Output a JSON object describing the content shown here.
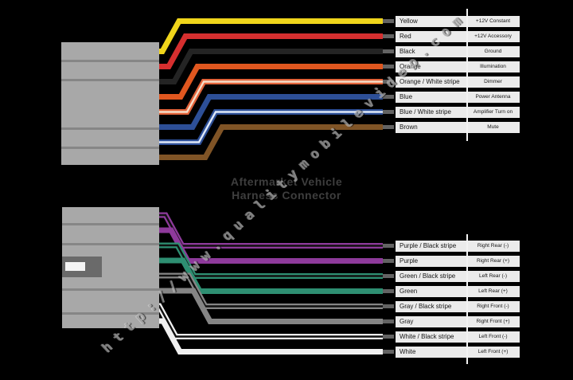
{
  "title": {
    "line1": "Aftermarket Vehicle",
    "line2": "Harness Connector"
  },
  "watermark": "http://www.qualitymobilevideo.com",
  "colors": {
    "background": "#000000",
    "connector_body": "#a8a8a8",
    "connector_slot": "#868686",
    "connector_latch_outer": "#6a6a6a",
    "connector_latch_inner": "#f5f5f5",
    "label_box": "#ebebeb",
    "label_text": "#141414",
    "divider_line": "#f3f3f3",
    "wire_tip": "#636363",
    "title_text": "#3e3e3e",
    "watermark_text": "#a3a3a3"
  },
  "top_harness": {
    "wires": [
      {
        "color_name": "Yellow",
        "function": "+12V Constant",
        "hex": "#f0d51b",
        "stripe": null
      },
      {
        "color_name": "Red",
        "function": "+12V Accessory",
        "hex": "#d62f2f",
        "stripe": null
      },
      {
        "color_name": "Black",
        "function": "Ground",
        "hex": "#242424",
        "stripe": null
      },
      {
        "color_name": "Orange",
        "function": "Illumination",
        "hex": "#e0571f",
        "stripe": null
      },
      {
        "color_name": "Orange / White stripe",
        "function": "Dimmer",
        "hex": "#e2633a",
        "stripe": "#f5ddc8"
      },
      {
        "color_name": "Blue",
        "function": "Power Antenna",
        "hex": "#2d4f97",
        "stripe": null
      },
      {
        "color_name": "Blue / White stripe",
        "function": "Amplifier Turn on",
        "hex": "#2d4f97",
        "stripe": "#dfe8f7"
      },
      {
        "color_name": "Brown",
        "function": "Mute",
        "hex": "#805426",
        "stripe": null
      }
    ]
  },
  "bottom_harness": {
    "wires": [
      {
        "color_name": "Purple / Black stripe",
        "function": "Right Rear (-)",
        "hex": "#8e3a9b",
        "stripe": "#101010"
      },
      {
        "color_name": "Purple",
        "function": "Right Rear (+)",
        "hex": "#8e3a9b",
        "stripe": null
      },
      {
        "color_name": "Green / Black stripe",
        "function": "Left Rear (-)",
        "hex": "#2e8f72",
        "stripe": "#101010"
      },
      {
        "color_name": "Green",
        "function": "Left Rear (+)",
        "hex": "#2e8f72",
        "stripe": null
      },
      {
        "color_name": "Gray / Black stripe",
        "function": "Right Front (-)",
        "hex": "#858585",
        "stripe": "#101010"
      },
      {
        "color_name": "Gray",
        "function": "Right Front (+)",
        "hex": "#858585",
        "stripe": null
      },
      {
        "color_name": "White / Black stripe",
        "function": "Left Front (-)",
        "hex": "#f0f0f0",
        "stripe": "#101010"
      },
      {
        "color_name": "White",
        "function": "Left Front (+)",
        "hex": "#f0f0f0",
        "stripe": null
      }
    ]
  }
}
